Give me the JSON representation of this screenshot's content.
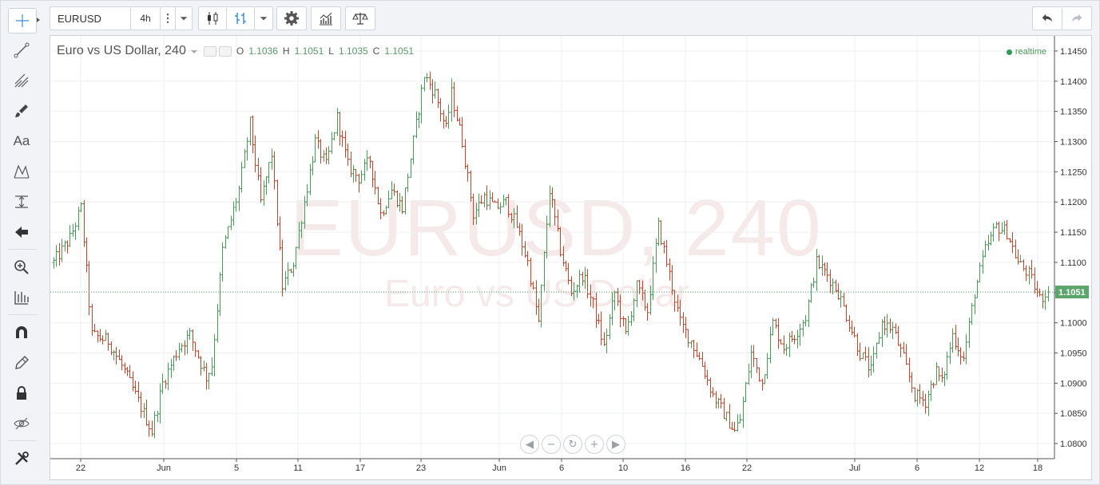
{
  "toolbar": {
    "symbol": "EURUSD",
    "resolution": "4h",
    "icons": [
      "crosshair-icon",
      "trend-line-icon",
      "pitchfork-icon",
      "brush-icon",
      "text-icon",
      "pattern-icon",
      "measure-icon",
      "arrow-left-icon",
      "zoom-in-icon",
      "data-window-icon",
      "magnet-icon",
      "lock-drawing-icon",
      "lock-icon",
      "eye-hidden-icon",
      "tools-icon",
      "candles-icon",
      "bars-icon",
      "gear-icon",
      "indicators-icon",
      "compare-icon",
      "undo-icon",
      "redo-icon"
    ]
  },
  "left_toolbar": {
    "text_tool_label": "Aa"
  },
  "legend": {
    "title": "Euro vs US Dollar, 240",
    "o_key": "O",
    "o": "1.1036",
    "h_key": "H",
    "h": "1.1051",
    "l_key": "L",
    "l": "1.1035",
    "c_key": "C",
    "c": "1.1051"
  },
  "status": {
    "realtime": "realtime"
  },
  "watermark": {
    "line1": "EURUSD, 240",
    "line2": "Euro vs US Dollar"
  },
  "colors": {
    "up": "#4a9b5a",
    "down": "#c4472c",
    "price_label": "#5aa56a",
    "grid": "#eef0f2"
  },
  "chart_data": {
    "type": "ohlc-bar",
    "symbol": "EURUSD",
    "interval": "240",
    "ylim": [
      1.0775,
      1.1475
    ],
    "y_ticks": [
      "1.1450",
      "1.1400",
      "1.1350",
      "1.1300",
      "1.1250",
      "1.1200",
      "1.1150",
      "1.1100",
      "1.1050",
      "1.1000",
      "1.0950",
      "1.0900",
      "1.0850",
      "1.0800"
    ],
    "x_ticks": [
      "22",
      "Jun",
      "5",
      "11",
      "17",
      "23",
      "Jun",
      "6",
      "10",
      "16",
      "22",
      "Jul",
      "6",
      "12",
      "18"
    ],
    "current_price": "1.1051",
    "path_points": [
      [
        0,
        1.11
      ],
      [
        6,
        1.114
      ],
      [
        10,
        1.119
      ],
      [
        14,
        1.098
      ],
      [
        20,
        1.097
      ],
      [
        26,
        1.092
      ],
      [
        32,
        1.086
      ],
      [
        36,
        1.082
      ],
      [
        40,
        1.09
      ],
      [
        46,
        1.096
      ],
      [
        50,
        1.098
      ],
      [
        56,
        1.091
      ],
      [
        58,
        1.093
      ],
      [
        62,
        1.112
      ],
      [
        68,
        1.122
      ],
      [
        72,
        1.133
      ],
      [
        76,
        1.12
      ],
      [
        80,
        1.128
      ],
      [
        84,
        1.106
      ],
      [
        88,
        1.11
      ],
      [
        92,
        1.12
      ],
      [
        96,
        1.13
      ],
      [
        100,
        1.126
      ],
      [
        104,
        1.134
      ],
      [
        108,
        1.126
      ],
      [
        112,
        1.124
      ],
      [
        116,
        1.127
      ],
      [
        120,
        1.118
      ],
      [
        124,
        1.122
      ],
      [
        128,
        1.119
      ],
      [
        132,
        1.13
      ],
      [
        136,
        1.141
      ],
      [
        140,
        1.138
      ],
      [
        144,
        1.132
      ],
      [
        146,
        1.138
      ],
      [
        150,
        1.13
      ],
      [
        154,
        1.118
      ],
      [
        158,
        1.121
      ],
      [
        162,
        1.119
      ],
      [
        166,
        1.12
      ],
      [
        170,
        1.116
      ],
      [
        174,
        1.11
      ],
      [
        178,
        1.1
      ],
      [
        182,
        1.122
      ],
      [
        186,
        1.112
      ],
      [
        190,
        1.105
      ],
      [
        194,
        1.108
      ],
      [
        198,
        1.103
      ],
      [
        202,
        1.096
      ],
      [
        206,
        1.105
      ],
      [
        210,
        1.098
      ],
      [
        214,
        1.106
      ],
      [
        218,
        1.102
      ],
      [
        222,
        1.116
      ],
      [
        226,
        1.108
      ],
      [
        230,
        1.1
      ],
      [
        234,
        1.097
      ],
      [
        238,
        1.093
      ],
      [
        242,
        1.088
      ],
      [
        246,
        1.085
      ],
      [
        250,
        1.082
      ],
      [
        252,
        1.084
      ],
      [
        256,
        1.095
      ],
      [
        260,
        1.09
      ],
      [
        264,
        1.1
      ],
      [
        268,
        1.096
      ],
      [
        272,
        1.098
      ],
      [
        276,
        1.101
      ],
      [
        280,
        1.11
      ],
      [
        284,
        1.108
      ],
      [
        288,
        1.105
      ],
      [
        292,
        1.1
      ],
      [
        296,
        1.095
      ],
      [
        300,
        1.092
      ],
      [
        304,
        1.1
      ],
      [
        308,
        1.099
      ],
      [
        312,
        1.094
      ],
      [
        316,
        1.088
      ],
      [
        320,
        1.087
      ],
      [
        324,
        1.092
      ],
      [
        326,
        1.09
      ],
      [
        330,
        1.098
      ],
      [
        334,
        1.094
      ],
      [
        338,
        1.105
      ],
      [
        342,
        1.112
      ],
      [
        346,
        1.116
      ],
      [
        350,
        1.115
      ],
      [
        354,
        1.11
      ],
      [
        358,
        1.108
      ],
      [
        362,
        1.104
      ],
      [
        365,
        1.1051
      ]
    ]
  }
}
